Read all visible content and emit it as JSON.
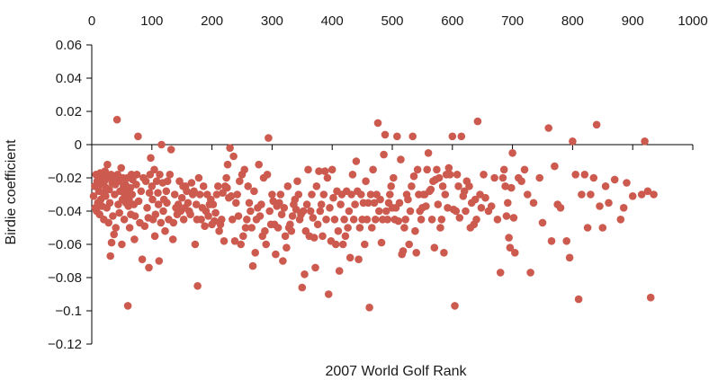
{
  "chart_data": {
    "type": "scatter",
    "xlabel": "2007 World Golf Rank",
    "ylabel": "Birdie coefficient",
    "xlim": [
      0,
      1000
    ],
    "ylim": [
      -0.12,
      0.06
    ],
    "x_ticks": [
      0,
      100,
      200,
      300,
      400,
      500,
      600,
      700,
      800,
      900,
      1000
    ],
    "x_tick_labels": [
      "0",
      "100",
      "200",
      "300",
      "400",
      "500",
      "600",
      "700",
      "800",
      "900",
      "1000"
    ],
    "y_ticks": [
      0.06,
      0.04,
      0.02,
      0,
      -0.02,
      -0.04,
      -0.06,
      -0.08,
      -0.1,
      -0.12
    ],
    "y_tick_labels": [
      "0.06",
      "0.04",
      "0.02",
      "0",
      "−0.02",
      "−0.04",
      "−0.06",
      "−0.08",
      "−0.1",
      "−0.12"
    ],
    "x_axis_position": "top",
    "y_axis_crosses_x_at": 0,
    "grid": false,
    "marker_color": "#cd5a4f",
    "points": [
      [
        3,
        -0.031
      ],
      [
        5,
        -0.025
      ],
      [
        6,
        -0.038
      ],
      [
        7,
        -0.018
      ],
      [
        8,
        -0.04
      ],
      [
        9,
        -0.022
      ],
      [
        10,
        -0.035
      ],
      [
        11,
        -0.02
      ],
      [
        12,
        -0.028
      ],
      [
        13,
        -0.042
      ],
      [
        14,
        -0.017
      ],
      [
        15,
        -0.033
      ],
      [
        16,
        -0.024
      ],
      [
        17,
        -0.037
      ],
      [
        18,
        -0.019
      ],
      [
        19,
        -0.029
      ],
      [
        20,
        -0.045
      ],
      [
        21,
        -0.022
      ],
      [
        22,
        -0.016
      ],
      [
        23,
        -0.031
      ],
      [
        24,
        -0.026
      ],
      [
        25,
        -0.038
      ],
      [
        26,
        -0.012
      ],
      [
        27,
        -0.02
      ],
      [
        28,
        -0.047
      ],
      [
        29,
        -0.027
      ],
      [
        30,
        -0.035
      ],
      [
        31,
        -0.067
      ],
      [
        32,
        -0.018
      ],
      [
        33,
        -0.059
      ],
      [
        34,
        -0.023
      ],
      [
        35,
        -0.043
      ],
      [
        36,
        -0.02
      ],
      [
        37,
        -0.054
      ],
      [
        38,
        -0.03
      ],
      [
        39,
        -0.024
      ],
      [
        40,
        -0.05
      ],
      [
        41,
        -0.021
      ],
      [
        42,
        0.015
      ],
      [
        43,
        -0.018
      ],
      [
        44,
        -0.036
      ],
      [
        45,
        -0.022
      ],
      [
        46,
        -0.041
      ],
      [
        47,
        -0.028
      ],
      [
        48,
        -0.02
      ],
      [
        49,
        -0.014
      ],
      [
        50,
        -0.06
      ],
      [
        51,
        -0.033
      ],
      [
        52,
        -0.02
      ],
      [
        53,
        -0.025
      ],
      [
        54,
        -0.045
      ],
      [
        55,
        -0.031
      ],
      [
        56,
        -0.024
      ],
      [
        57,
        -0.035
      ],
      [
        58,
        -0.028
      ],
      [
        59,
        -0.02
      ],
      [
        60,
        -0.097
      ],
      [
        61,
        -0.037
      ],
      [
        62,
        -0.033
      ],
      [
        63,
        -0.05
      ],
      [
        64,
        -0.026
      ],
      [
        65,
        -0.042
      ],
      [
        66,
        -0.018
      ],
      [
        67,
        -0.03
      ],
      [
        68,
        -0.021
      ],
      [
        70,
        -0.036
      ],
      [
        71,
        -0.057
      ],
      [
        72,
        -0.043
      ],
      [
        74,
        -0.024
      ],
      [
        75,
        -0.018
      ],
      [
        77,
        0.005
      ],
      [
        78,
        -0.034
      ],
      [
        80,
        -0.047
      ],
      [
        82,
        -0.028
      ],
      [
        84,
        -0.069
      ],
      [
        86,
        -0.02
      ],
      [
        88,
        -0.049
      ],
      [
        90,
        -0.022
      ],
      [
        92,
        -0.038
      ],
      [
        94,
        -0.044
      ],
      [
        95,
        -0.074
      ],
      [
        96,
        -0.029
      ],
      [
        97,
        -0.018
      ],
      [
        98,
        -0.008
      ],
      [
        100,
        -0.025
      ],
      [
        101,
        -0.033
      ],
      [
        102,
        -0.045
      ],
      [
        104,
        -0.015
      ],
      [
        105,
        -0.055
      ],
      [
        106,
        -0.042
      ],
      [
        108,
        -0.022
      ],
      [
        110,
        -0.029
      ],
      [
        111,
        -0.036
      ],
      [
        112,
        -0.07
      ],
      [
        113,
        -0.018
      ],
      [
        115,
        -0.047
      ],
      [
        116,
        0.0
      ],
      [
        118,
        -0.023
      ],
      [
        119,
        -0.04
      ],
      [
        120,
        -0.033
      ],
      [
        122,
        -0.052
      ],
      [
        124,
        -0.028
      ],
      [
        125,
        -0.035
      ],
      [
        126,
        -0.022
      ],
      [
        128,
        -0.045
      ],
      [
        130,
        -0.018
      ],
      [
        132,
        -0.003
      ],
      [
        135,
        -0.057
      ],
      [
        136,
        -0.047
      ],
      [
        138,
        -0.03
      ],
      [
        140,
        -0.038
      ],
      [
        142,
        -0.042
      ],
      [
        144,
        -0.036
      ],
      [
        146,
        -0.022
      ],
      [
        148,
        -0.04
      ],
      [
        150,
        -0.032
      ],
      [
        152,
        -0.025
      ],
      [
        153,
        -0.045
      ],
      [
        155,
        -0.038
      ],
      [
        156,
        -0.025
      ],
      [
        158,
        -0.028
      ],
      [
        160,
        -0.035
      ],
      [
        162,
        -0.04
      ],
      [
        164,
        -0.042
      ],
      [
        166,
        -0.023
      ],
      [
        168,
        -0.03
      ],
      [
        170,
        -0.028
      ],
      [
        172,
        -0.06
      ],
      [
        174,
        -0.036
      ],
      [
        175,
        -0.045
      ],
      [
        176,
        -0.085
      ],
      [
        178,
        -0.02
      ],
      [
        180,
        -0.03
      ],
      [
        182,
        -0.045
      ],
      [
        184,
        -0.038
      ],
      [
        186,
        -0.025
      ],
      [
        188,
        -0.049
      ],
      [
        190,
        -0.04
      ],
      [
        192,
        -0.03
      ],
      [
        194,
        -0.043
      ],
      [
        196,
        -0.036
      ],
      [
        198,
        -0.033
      ],
      [
        200,
        -0.048
      ],
      [
        202,
        -0.036
      ],
      [
        204,
        -0.046
      ],
      [
        206,
        -0.041
      ],
      [
        208,
        -0.03
      ],
      [
        210,
        -0.025
      ],
      [
        212,
        -0.052
      ],
      [
        214,
        -0.048
      ],
      [
        216,
        -0.045
      ],
      [
        218,
        -0.029
      ],
      [
        220,
        -0.058
      ],
      [
        222,
        -0.025
      ],
      [
        224,
        -0.02
      ],
      [
        225,
        -0.026
      ],
      [
        226,
        -0.012
      ],
      [
        228,
        -0.032
      ],
      [
        230,
        -0.002
      ],
      [
        232,
        -0.031
      ],
      [
        234,
        -0.045
      ],
      [
        236,
        -0.007
      ],
      [
        238,
        -0.058
      ],
      [
        240,
        -0.035
      ],
      [
        242,
        -0.03
      ],
      [
        244,
        -0.043
      ],
      [
        246,
        -0.022
      ],
      [
        248,
        -0.06
      ],
      [
        250,
        -0.018
      ],
      [
        252,
        -0.055
      ],
      [
        254,
        -0.015
      ],
      [
        256,
        -0.05
      ],
      [
        258,
        -0.045
      ],
      [
        260,
        -0.025
      ],
      [
        262,
        -0.035
      ],
      [
        264,
        -0.04
      ],
      [
        266,
        -0.05
      ],
      [
        268,
        -0.073
      ],
      [
        270,
        -0.028
      ],
      [
        272,
        -0.065
      ],
      [
        274,
        -0.045
      ],
      [
        276,
        -0.038
      ],
      [
        278,
        -0.012
      ],
      [
        280,
        -0.043
      ],
      [
        282,
        -0.036
      ],
      [
        284,
        -0.055
      ],
      [
        286,
        -0.02
      ],
      [
        288,
        -0.052
      ],
      [
        290,
        -0.06
      ],
      [
        292,
        -0.018
      ],
      [
        294,
        0.004
      ],
      [
        296,
        -0.04
      ],
      [
        298,
        -0.048
      ],
      [
        300,
        -0.03
      ],
      [
        302,
        -0.034
      ],
      [
        304,
        -0.048
      ],
      [
        306,
        -0.066
      ],
      [
        308,
        -0.037
      ],
      [
        310,
        -0.05
      ],
      [
        312,
        -0.035
      ],
      [
        314,
        -0.03
      ],
      [
        316,
        -0.042
      ],
      [
        318,
        -0.07
      ],
      [
        320,
        -0.038
      ],
      [
        322,
        -0.055
      ],
      [
        324,
        -0.062
      ],
      [
        326,
        -0.025
      ],
      [
        328,
        -0.05
      ],
      [
        330,
        -0.048
      ],
      [
        332,
        -0.052
      ],
      [
        334,
        -0.043
      ],
      [
        336,
        -0.036
      ],
      [
        338,
        -0.033
      ],
      [
        340,
        -0.039
      ],
      [
        342,
        -0.022
      ],
      [
        344,
        -0.03
      ],
      [
        346,
        -0.045
      ],
      [
        348,
        -0.042
      ],
      [
        350,
        -0.086
      ],
      [
        352,
        -0.04
      ],
      [
        354,
        -0.078
      ],
      [
        356,
        -0.052
      ],
      [
        358,
        -0.036
      ],
      [
        360,
        -0.015
      ],
      [
        362,
        -0.055
      ],
      [
        364,
        -0.04
      ],
      [
        366,
        -0.03
      ],
      [
        368,
        -0.044
      ],
      [
        370,
        -0.056
      ],
      [
        372,
        -0.074
      ],
      [
        374,
        -0.025
      ],
      [
        376,
        -0.048
      ],
      [
        378,
        -0.016
      ],
      [
        380,
        -0.04
      ],
      [
        382,
        -0.036
      ],
      [
        384,
        -0.055
      ],
      [
        386,
        -0.03
      ],
      [
        388,
        -0.016
      ],
      [
        390,
        -0.045
      ],
      [
        392,
        -0.02
      ],
      [
        394,
        -0.09
      ],
      [
        396,
        -0.038
      ],
      [
        398,
        -0.058
      ],
      [
        400,
        -0.015
      ],
      [
        402,
        -0.032
      ],
      [
        404,
        -0.045
      ],
      [
        406,
        -0.06
      ],
      [
        408,
        -0.028
      ],
      [
        410,
        -0.052
      ],
      [
        412,
        -0.076
      ],
      [
        414,
        -0.036
      ],
      [
        416,
        -0.03
      ],
      [
        418,
        -0.06
      ],
      [
        420,
        -0.045
      ],
      [
        422,
        -0.055
      ],
      [
        424,
        -0.028
      ],
      [
        426,
        -0.05
      ],
      [
        428,
        -0.04
      ],
      [
        430,
        -0.068
      ],
      [
        432,
        -0.03
      ],
      [
        434,
        -0.018
      ],
      [
        436,
        -0.045
      ],
      [
        438,
        -0.036
      ],
      [
        440,
        -0.01
      ],
      [
        442,
        -0.028
      ],
      [
        444,
        -0.069
      ],
      [
        446,
        -0.05
      ],
      [
        448,
        -0.03
      ],
      [
        450,
        -0.045
      ],
      [
        452,
        -0.035
      ],
      [
        454,
        -0.06
      ],
      [
        456,
        -0.022
      ],
      [
        458,
        -0.045
      ],
      [
        460,
        -0.035
      ],
      [
        462,
        -0.098
      ],
      [
        464,
        -0.03
      ],
      [
        466,
        -0.05
      ],
      [
        468,
        -0.015
      ],
      [
        470,
        -0.035
      ],
      [
        472,
        -0.045
      ],
      [
        474,
        -0.03
      ],
      [
        476,
        0.013
      ],
      [
        478,
        -0.04
      ],
      [
        480,
        -0.033
      ],
      [
        482,
        -0.059
      ],
      [
        484,
        -0.045
      ],
      [
        486,
        -0.006
      ],
      [
        488,
        0.006
      ],
      [
        490,
        -0.04
      ],
      [
        492,
        -0.045
      ],
      [
        494,
        -0.035
      ],
      [
        496,
        -0.03
      ],
      [
        498,
        -0.025
      ],
      [
        500,
        -0.038
      ],
      [
        502,
        -0.02
      ],
      [
        504,
        -0.045
      ],
      [
        506,
        -0.038
      ],
      [
        508,
        0.005
      ],
      [
        510,
        -0.046
      ],
      [
        512,
        -0.035
      ],
      [
        514,
        -0.009
      ],
      [
        516,
        -0.066
      ],
      [
        518,
        -0.064
      ],
      [
        520,
        -0.05
      ],
      [
        522,
        -0.045
      ],
      [
        524,
        -0.03
      ],
      [
        526,
        -0.033
      ],
      [
        528,
        -0.06
      ],
      [
        530,
        -0.04
      ],
      [
        532,
        -0.025
      ],
      [
        534,
        0.005
      ],
      [
        536,
        -0.019
      ],
      [
        538,
        -0.052
      ],
      [
        540,
        -0.065
      ],
      [
        542,
        -0.015
      ],
      [
        544,
        -0.03
      ],
      [
        546,
        -0.04
      ],
      [
        548,
        -0.045
      ],
      [
        550,
        -0.038
      ],
      [
        552,
        -0.03
      ],
      [
        554,
        -0.03
      ],
      [
        556,
        -0.037
      ],
      [
        558,
        -0.015
      ],
      [
        560,
        -0.005
      ],
      [
        562,
        -0.028
      ],
      [
        564,
        -0.027
      ],
      [
        566,
        -0.045
      ],
      [
        568,
        -0.022
      ],
      [
        570,
        -0.062
      ],
      [
        572,
        -0.021
      ],
      [
        574,
        -0.015
      ],
      [
        576,
        -0.036
      ],
      [
        578,
        -0.02
      ],
      [
        580,
        -0.05
      ],
      [
        582,
        -0.045
      ],
      [
        584,
        -0.025
      ],
      [
        586,
        -0.065
      ],
      [
        588,
        -0.03
      ],
      [
        590,
        -0.018
      ],
      [
        592,
        -0.038
      ],
      [
        594,
        -0.014
      ],
      [
        596,
        -0.018
      ],
      [
        600,
        0.005
      ],
      [
        602,
        -0.039
      ],
      [
        604,
        -0.097
      ],
      [
        606,
        -0.04
      ],
      [
        608,
        -0.018
      ],
      [
        610,
        -0.025
      ],
      [
        612,
        -0.044
      ],
      [
        615,
        0.005
      ],
      [
        618,
        -0.031
      ],
      [
        620,
        -0.028
      ],
      [
        622,
        -0.04
      ],
      [
        624,
        -0.022
      ],
      [
        628,
        -0.025
      ],
      [
        630,
        -0.05
      ],
      [
        632,
        -0.035
      ],
      [
        636,
        -0.048
      ],
      [
        638,
        -0.033
      ],
      [
        640,
        -0.045
      ],
      [
        642,
        0.014
      ],
      [
        646,
        -0.03
      ],
      [
        648,
        -0.038
      ],
      [
        652,
        -0.018
      ],
      [
        655,
        -0.032
      ],
      [
        660,
        -0.04
      ],
      [
        665,
        -0.037
      ],
      [
        670,
        -0.02
      ],
      [
        675,
        -0.045
      ],
      [
        680,
        -0.077
      ],
      [
        684,
        -0.02
      ],
      [
        686,
        -0.015
      ],
      [
        688,
        -0.025
      ],
      [
        690,
        -0.043
      ],
      [
        692,
        -0.035
      ],
      [
        694,
        -0.056
      ],
      [
        696,
        -0.062
      ],
      [
        698,
        -0.026
      ],
      [
        700,
        -0.005
      ],
      [
        702,
        -0.044
      ],
      [
        704,
        -0.065
      ],
      [
        710,
        -0.02
      ],
      [
        715,
        -0.022
      ],
      [
        720,
        -0.015
      ],
      [
        725,
        -0.03
      ],
      [
        730,
        -0.077
      ],
      [
        735,
        -0.035
      ],
      [
        745,
        -0.02
      ],
      [
        750,
        -0.047
      ],
      [
        760,
        0.01
      ],
      [
        765,
        -0.058
      ],
      [
        770,
        -0.013
      ],
      [
        775,
        -0.036
      ],
      [
        780,
        -0.038
      ],
      [
        790,
        -0.058
      ],
      [
        795,
        -0.068
      ],
      [
        800,
        0.002
      ],
      [
        805,
        -0.018
      ],
      [
        810,
        -0.093
      ],
      [
        815,
        -0.03
      ],
      [
        820,
        -0.018
      ],
      [
        825,
        -0.05
      ],
      [
        830,
        -0.03
      ],
      [
        835,
        -0.02
      ],
      [
        840,
        0.012
      ],
      [
        845,
        -0.037
      ],
      [
        850,
        -0.05
      ],
      [
        855,
        -0.025
      ],
      [
        860,
        -0.035
      ],
      [
        870,
        -0.021
      ],
      [
        880,
        -0.045
      ],
      [
        885,
        -0.038
      ],
      [
        890,
        -0.023
      ],
      [
        900,
        -0.031
      ],
      [
        915,
        -0.03
      ],
      [
        920,
        0.002
      ],
      [
        925,
        -0.028
      ],
      [
        930,
        -0.092
      ],
      [
        935,
        -0.03
      ]
    ]
  }
}
